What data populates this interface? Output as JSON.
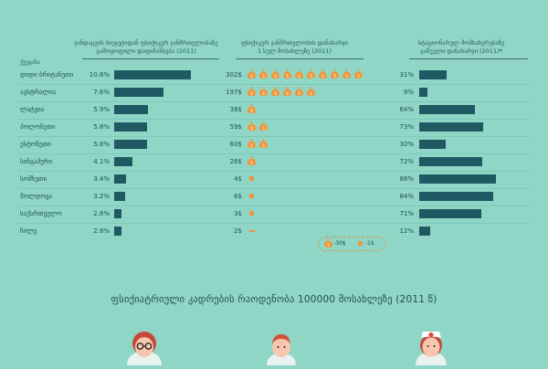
{
  "headers": {
    "country_col": "ქვეყანა",
    "col1": [
      "ჯანდაცვის ბიუჯეტიდან ფსიქიკურ ჯანმრთელობაზე",
      "გამოყოფილი დაფინანსება (2011)"
    ],
    "col2": [
      "ფსიქიკურ ჯანმრთელობის დანახარჯი",
      "1 სულ მოსახლეზე (2011)"
    ],
    "col3": [
      "სტაციონარულ მომსახურებაზე",
      "გაწეული დანახარჯი (2011)"
    ],
    "col3_mark": "*"
  },
  "chart_data": {
    "type": "table",
    "rows": [
      {
        "country": "დიდი ბრიტანეთი",
        "budget_share": "10.8%",
        "budget_share_value": 10.8,
        "per_capita": "302$",
        "per_capita_value": 302,
        "money_bags": 10,
        "inpatient": "31%",
        "inpatient_value": 31
      },
      {
        "country": "ავსტრალია",
        "budget_share": "7.6%",
        "budget_share_value": 7.6,
        "per_capita": "197$",
        "per_capita_value": 197,
        "money_bags": 6,
        "inpatient": "9%",
        "inpatient_value": 9
      },
      {
        "country": "ლატვია",
        "budget_share": "5.9%",
        "budget_share_value": 5.9,
        "per_capita": "38$",
        "per_capita_value": 38,
        "money_bags": 1,
        "inpatient": "64%",
        "inpatient_value": 64
      },
      {
        "country": "პოლონეთი",
        "budget_share": "5.8%",
        "budget_share_value": 5.8,
        "per_capita": "59$",
        "per_capita_value": 59,
        "money_bags": 2,
        "inpatient": "73%",
        "inpatient_value": 73
      },
      {
        "country": "ესტონეთი",
        "budget_share": "5.8%",
        "budget_share_value": 5.8,
        "per_capita": "60$",
        "per_capita_value": 60,
        "money_bags": 2,
        "inpatient": "30%",
        "inpatient_value": 30
      },
      {
        "country": "სინგაპური",
        "budget_share": "4.1%",
        "budget_share_value": 4.1,
        "per_capita": "26$",
        "per_capita_value": 26,
        "money_bags": 1,
        "inpatient": "72%",
        "inpatient_value": 72
      },
      {
        "country": "სომხეთი",
        "budget_share": "3.4%",
        "budget_share_value": 3.4,
        "per_capita": "4$",
        "per_capita_value": 4,
        "money_bags": 0,
        "inpatient": "88%",
        "inpatient_value": 88
      },
      {
        "country": "მოლდოვა",
        "budget_share": "3.2%",
        "budget_share_value": 3.2,
        "per_capita": "6$",
        "per_capita_value": 6,
        "money_bags": 0,
        "inpatient": "84%",
        "inpatient_value": 84
      },
      {
        "country": "საქართველო",
        "budget_share": "2.8%",
        "budget_share_value": 2.8,
        "per_capita": "3$",
        "per_capita_value": 3,
        "money_bags": 0,
        "inpatient": "71%",
        "inpatient_value": 71
      },
      {
        "country": "ჩილე",
        "budget_share": "2.8%",
        "budget_share_value": 2.8,
        "per_capita": "2$",
        "per_capita_value": 2,
        "money_bags": 0,
        "inpatient": "12%",
        "inpatient_value": 12
      }
    ]
  },
  "legend": {
    "bag_label": "-30$",
    "small_label": "-1$"
  },
  "bottom_title": "ფსიქიატრიული კადრების რაოდენობა 100000 მოსახლეზე (2011 წ)",
  "colors": {
    "background": "#8fd6c6",
    "bar": "#1f5963",
    "money": "#f29639",
    "text": "#1e4f57"
  }
}
